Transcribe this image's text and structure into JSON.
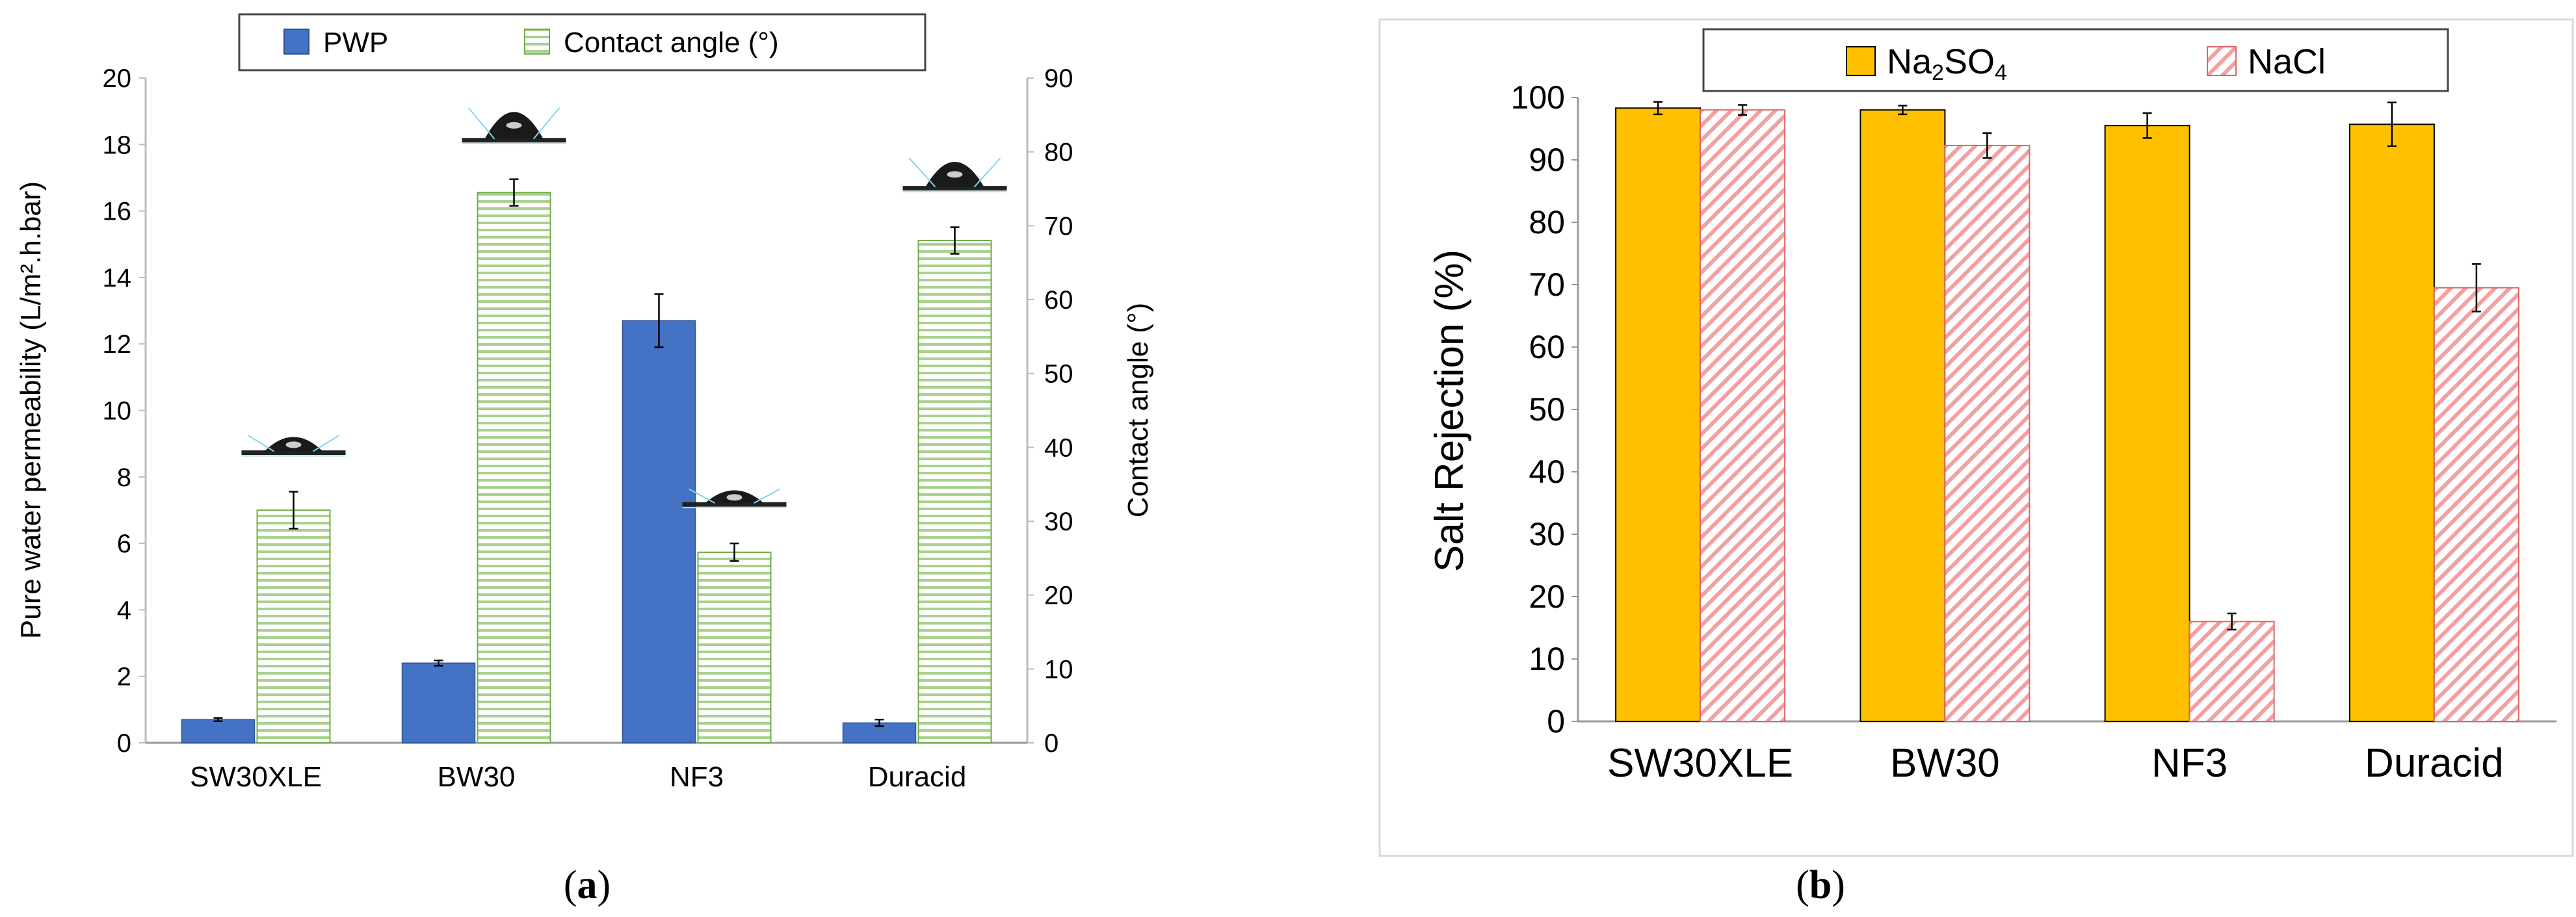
{
  "chart_data": [
    {
      "panel": "a",
      "type": "bar",
      "categories": [
        "SW30XLE",
        "BW30",
        "NF3",
        "Duracid"
      ],
      "series": [
        {
          "name": "PWP",
          "axis": "left",
          "values": [
            0.7,
            2.4,
            12.7,
            0.6
          ],
          "errors": [
            0.05,
            0.08,
            0.8,
            0.1
          ],
          "color": "#4472C4"
        },
        {
          "name": "Contact angle (°)",
          "axis": "right",
          "values": [
            31.5,
            74.5,
            25.8,
            68.0
          ],
          "errors": [
            2.5,
            1.8,
            1.2,
            1.8
          ],
          "color": "#A9D18E"
        }
      ],
      "ylabel": "Pure water permeability (L/m².h.bar)",
      "ylabel_right": "Contact angle (°)",
      "ylim": [
        0,
        20
      ],
      "yticks": [
        "0",
        "2",
        "4",
        "6",
        "8",
        "10",
        "12",
        "14",
        "16",
        "18",
        "20"
      ],
      "ylim_right": [
        0,
        90
      ],
      "yticks_right": [
        "0",
        "10",
        "20",
        "30",
        "40",
        "50",
        "60",
        "70",
        "80",
        "90"
      ],
      "legend": "top",
      "grid": false,
      "panel_label": {
        "open": "(",
        "letter": "a",
        "close": ")"
      }
    },
    {
      "panel": "b",
      "type": "bar",
      "categories": [
        "SW30XLE",
        "BW30",
        "NF3",
        "Duracid"
      ],
      "series": [
        {
          "name": "Na2SO4",
          "name_parts": [
            "Na",
            "2",
            "SO",
            "4"
          ],
          "values": [
            98.3,
            98.0,
            95.5,
            95.7
          ],
          "errors": [
            1.0,
            0.7,
            2.0,
            3.5
          ],
          "color": "#FFC000"
        },
        {
          "name": "NaCl",
          "values": [
            98.0,
            92.3,
            16.0,
            69.5
          ],
          "errors": [
            0.8,
            2.0,
            1.3,
            3.8
          ],
          "color": "#FF9999"
        }
      ],
      "ylabel": "Salt Rejection (%)",
      "ylim": [
        0,
        100
      ],
      "yticks": [
        "0",
        "10",
        "20",
        "30",
        "40",
        "50",
        "60",
        "70",
        "80",
        "90",
        "100"
      ],
      "legend": "top",
      "grid": false,
      "panel_label": {
        "open": "(",
        "letter": "b",
        "close": ")"
      }
    }
  ]
}
